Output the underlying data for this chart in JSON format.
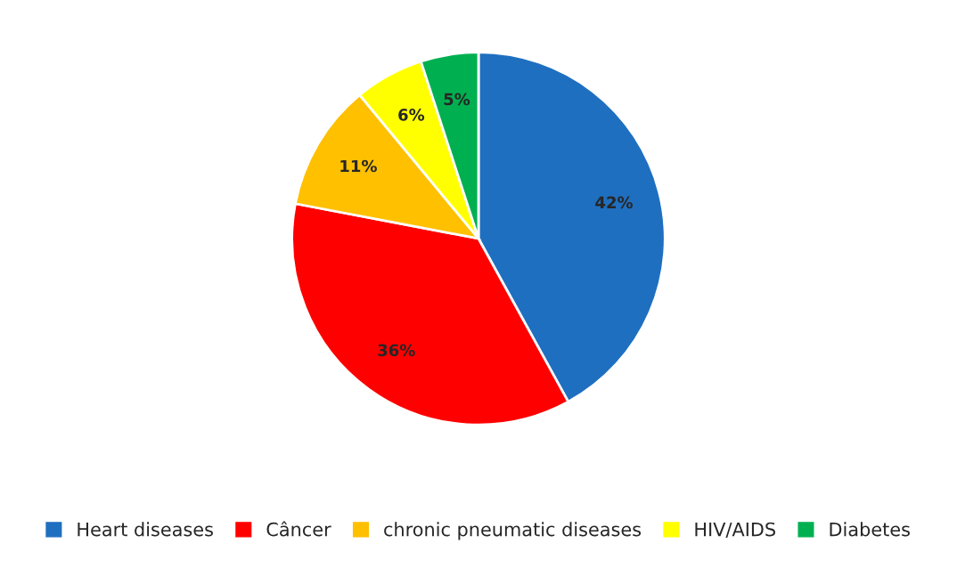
{
  "chart_data": {
    "type": "pie",
    "categories": [
      "Heart diseases",
      "Câncer",
      "chronic pneumatic diseases",
      "HIV/AIDS",
      "Diabetes"
    ],
    "values": [
      42,
      36,
      11,
      6,
      5
    ],
    "colors": [
      "#1f6fc0",
      "#ff0000",
      "#ffc000",
      "#ffff00",
      "#00b050"
    ],
    "value_labels": [
      "42%",
      "36%",
      "11%",
      "6%",
      "5%"
    ],
    "legend": "bottom"
  }
}
